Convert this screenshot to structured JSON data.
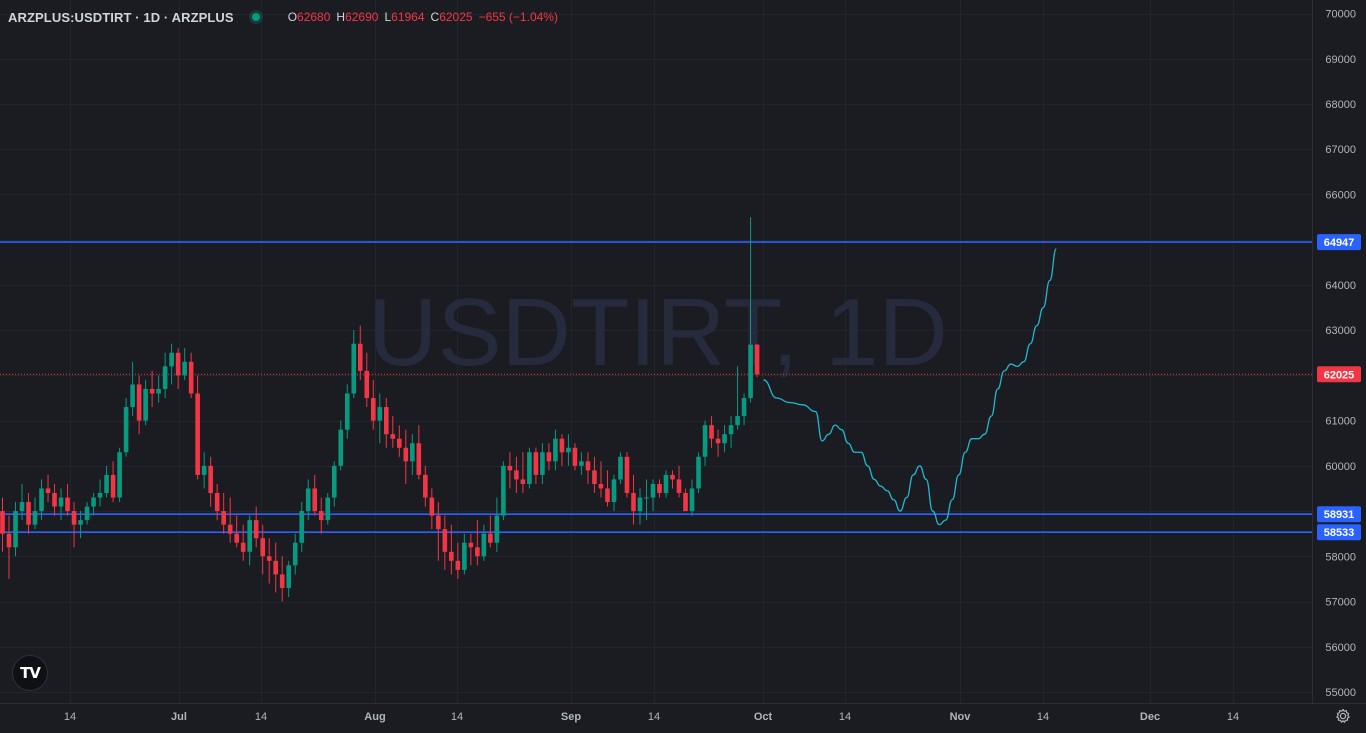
{
  "header": {
    "symbol": "ARZPLUS:USDTIRT · 1D · ARZPLUS",
    "open_label": "O",
    "open_value": "62680",
    "high_label": "H",
    "high_value": "62690",
    "low_label": "L",
    "low_value": "61964",
    "close_label": "C",
    "close_value": "62025",
    "change": "−655 (−1.04%)"
  },
  "watermark": "USDTIRT, 1D",
  "logo_text": "TV",
  "icons": {
    "logo": "tradingview-logo",
    "settings": "gear-icon",
    "status": "market-status-dot"
  },
  "colors": {
    "background": "#1b1c22",
    "up": "#089981",
    "down": "#f23645",
    "level_line": "#2962ff",
    "projection": "#1fb8cf",
    "axis_text": "#b2b5be",
    "grid": "#23252d"
  },
  "chart_data": {
    "type": "candlestick",
    "title": "ARZPLUS:USDTIRT · 1D · ARZPLUS",
    "x_ticks": [
      "14",
      "Jul",
      "14",
      "Aug",
      "14",
      "Sep",
      "14",
      "Oct",
      "14",
      "Nov",
      "14",
      "Dec",
      "14"
    ],
    "y_ticks": [
      55000,
      56000,
      57000,
      58000,
      59000,
      60000,
      61000,
      62000,
      63000,
      64000,
      65000,
      66000,
      67000,
      68000,
      69000,
      70000
    ],
    "ylim": [
      54800,
      70200
    ],
    "horizontal_levels": [
      64947,
      58931,
      58533
    ],
    "last_price": 62025,
    "grid": true,
    "candles": [
      [
        59000,
        59300,
        58100,
        58500
      ],
      [
        58500,
        58900,
        57500,
        58200
      ],
      [
        58200,
        59200,
        58000,
        59000
      ],
      [
        59000,
        59600,
        58800,
        59200
      ],
      [
        59200,
        59400,
        58500,
        58700
      ],
      [
        58700,
        59300,
        58600,
        59000
      ],
      [
        59000,
        59700,
        58800,
        59500
      ],
      [
        59500,
        59800,
        59200,
        59400
      ],
      [
        59400,
        59600,
        58900,
        59100
      ],
      [
        59100,
        59500,
        58800,
        59300
      ],
      [
        59300,
        59600,
        58900,
        59000
      ],
      [
        59000,
        59200,
        58200,
        58700
      ],
      [
        58700,
        59000,
        58400,
        58800
      ],
      [
        58800,
        59200,
        58700,
        59100
      ],
      [
        59100,
        59400,
        58900,
        59300
      ],
      [
        59300,
        59700,
        59100,
        59400
      ],
      [
        59400,
        60000,
        59300,
        59800
      ],
      [
        59800,
        60100,
        59200,
        59300
      ],
      [
        59300,
        60400,
        59200,
        60300
      ],
      [
        60300,
        61500,
        60200,
        61300
      ],
      [
        61300,
        62300,
        61100,
        61800
      ],
      [
        61800,
        62000,
        60700,
        61000
      ],
      [
        61000,
        61900,
        60900,
        61700
      ],
      [
        61700,
        62100,
        61300,
        61600
      ],
      [
        61600,
        62000,
        61400,
        61700
      ],
      [
        61700,
        62500,
        61500,
        62200
      ],
      [
        62200,
        62700,
        61800,
        62500
      ],
      [
        62500,
        62600,
        61700,
        62000
      ],
      [
        62000,
        62600,
        61900,
        62300
      ],
      [
        62300,
        62500,
        61500,
        61600
      ],
      [
        61600,
        62000,
        59700,
        59800
      ],
      [
        59800,
        60300,
        59500,
        60000
      ],
      [
        60000,
        60200,
        59100,
        59400
      ],
      [
        59400,
        59600,
        58800,
        59000
      ],
      [
        59000,
        59400,
        58500,
        58700
      ],
      [
        58700,
        59300,
        58300,
        58500
      ],
      [
        58500,
        58900,
        58200,
        58300
      ],
      [
        58300,
        58700,
        57900,
        58100
      ],
      [
        58100,
        58900,
        57800,
        58800
      ],
      [
        58800,
        59100,
        58200,
        58400
      ],
      [
        58400,
        58700,
        57600,
        58000
      ],
      [
        58000,
        58400,
        57400,
        57900
      ],
      [
        57900,
        58300,
        57200,
        57600
      ],
      [
        57600,
        58000,
        57000,
        57300
      ],
      [
        57300,
        57900,
        57100,
        57800
      ],
      [
        57800,
        58500,
        57600,
        58300
      ],
      [
        58300,
        59200,
        58100,
        59000
      ],
      [
        59000,
        59700,
        58800,
        59500
      ],
      [
        59500,
        59800,
        58900,
        59000
      ],
      [
        59000,
        59300,
        58500,
        58800
      ],
      [
        58800,
        59400,
        58700,
        59300
      ],
      [
        59300,
        60100,
        59100,
        60000
      ],
      [
        60000,
        61000,
        59900,
        60800
      ],
      [
        60800,
        61800,
        60600,
        61600
      ],
      [
        61600,
        63000,
        61500,
        62700
      ],
      [
        62700,
        63100,
        61900,
        62100
      ],
      [
        62100,
        62500,
        61300,
        61500
      ],
      [
        61500,
        61900,
        60800,
        61000
      ],
      [
        61000,
        61600,
        60500,
        61300
      ],
      [
        61300,
        61500,
        60400,
        60700
      ],
      [
        60700,
        61100,
        60400,
        60600
      ],
      [
        60600,
        60900,
        60200,
        60400
      ],
      [
        60400,
        60800,
        59600,
        60100
      ],
      [
        60100,
        60700,
        59800,
        60500
      ],
      [
        60500,
        60900,
        59700,
        59800
      ],
      [
        59800,
        60000,
        59100,
        59300
      ],
      [
        59300,
        59500,
        58600,
        58900
      ],
      [
        58900,
        59200,
        57900,
        58600
      ],
      [
        58600,
        58900,
        57700,
        58100
      ],
      [
        58100,
        58700,
        57600,
        57900
      ],
      [
        57900,
        58300,
        57500,
        57700
      ],
      [
        57700,
        58500,
        57600,
        58300
      ],
      [
        58300,
        58500,
        57800,
        58200
      ],
      [
        58200,
        58800,
        57800,
        58000
      ],
      [
        58000,
        58700,
        57900,
        58500
      ],
      [
        58500,
        58900,
        58200,
        58300
      ],
      [
        58300,
        59300,
        58100,
        58900
      ],
      [
        58900,
        60100,
        58800,
        60000
      ],
      [
        60000,
        60300,
        59500,
        59900
      ],
      [
        59900,
        60200,
        59400,
        59700
      ],
      [
        59700,
        60300,
        59400,
        59600
      ],
      [
        59600,
        60400,
        59500,
        60300
      ],
      [
        60300,
        60400,
        59600,
        59800
      ],
      [
        59800,
        60500,
        59600,
        60300
      ],
      [
        60300,
        60500,
        59900,
        60100
      ],
      [
        60100,
        60800,
        59900,
        60600
      ],
      [
        60600,
        60700,
        60000,
        60300
      ],
      [
        60300,
        60700,
        60000,
        60400
      ],
      [
        60400,
        60500,
        59900,
        60000
      ],
      [
        60000,
        60300,
        59800,
        60100
      ],
      [
        60100,
        60300,
        59600,
        59900
      ],
      [
        59900,
        60200,
        59400,
        59600
      ],
      [
        59600,
        60100,
        59300,
        59500
      ],
      [
        59500,
        59900,
        59100,
        59200
      ],
      [
        59200,
        59800,
        59000,
        59700
      ],
      [
        59700,
        60300,
        59600,
        60200
      ],
      [
        60200,
        60300,
        59300,
        59400
      ],
      [
        59400,
        59800,
        58700,
        59000
      ],
      [
        59000,
        59500,
        58700,
        59300
      ],
      [
        59300,
        59700,
        58800,
        59300
      ],
      [
        59300,
        59700,
        59000,
        59600
      ],
      [
        59600,
        59700,
        59300,
        59400
      ],
      [
        59400,
        59900,
        59300,
        59800
      ],
      [
        59800,
        59900,
        59500,
        59700
      ],
      [
        59700,
        60000,
        59300,
        59400
      ],
      [
        59400,
        59500,
        59000,
        59000
      ],
      [
        59000,
        59700,
        58900,
        59500
      ],
      [
        59500,
        60300,
        59400,
        60200
      ],
      [
        60200,
        61000,
        60000,
        60900
      ],
      [
        60900,
        61100,
        60400,
        60600
      ],
      [
        60600,
        60800,
        60200,
        60500
      ],
      [
        60500,
        60900,
        60300,
        60700
      ],
      [
        60700,
        61100,
        60400,
        60900
      ],
      [
        60900,
        62200,
        60800,
        61100
      ],
      [
        61100,
        61600,
        60900,
        61500
      ],
      [
        61500,
        65500,
        61400,
        62680
      ],
      [
        62680,
        62690,
        61964,
        62025
      ]
    ],
    "projection": [
      [
        1,
        61900
      ],
      [
        3,
        61500
      ],
      [
        5,
        61400
      ],
      [
        7,
        61350
      ],
      [
        9,
        61200
      ],
      [
        10,
        60550
      ],
      [
        11,
        60700
      ],
      [
        12,
        60900
      ],
      [
        13,
        60800
      ],
      [
        14,
        60500
      ],
      [
        15,
        60300
      ],
      [
        16,
        60300
      ],
      [
        17,
        60000
      ],
      [
        18,
        59700
      ],
      [
        19,
        59550
      ],
      [
        20,
        59450
      ],
      [
        21,
        59250
      ],
      [
        22,
        59000
      ],
      [
        23,
        59300
      ],
      [
        24,
        59800
      ],
      [
        25,
        60000
      ],
      [
        26,
        59700
      ],
      [
        27,
        59000
      ],
      [
        28,
        58700
      ],
      [
        29,
        58800
      ],
      [
        30,
        59250
      ],
      [
        31,
        59800
      ],
      [
        32,
        60300
      ],
      [
        33,
        60600
      ],
      [
        34,
        60600
      ],
      [
        35,
        60700
      ],
      [
        36,
        61100
      ],
      [
        37,
        61700
      ],
      [
        38,
        62100
      ],
      [
        39,
        62250
      ],
      [
        40,
        62200
      ],
      [
        41,
        62300
      ],
      [
        42,
        62700
      ],
      [
        43,
        63100
      ],
      [
        44,
        63500
      ],
      [
        45,
        64100
      ],
      [
        46,
        64800
      ]
    ]
  }
}
